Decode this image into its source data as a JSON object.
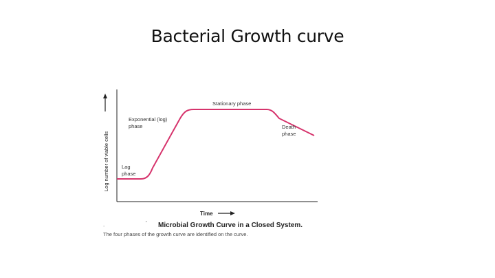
{
  "slide": {
    "title": "Bacterial Growth curve"
  },
  "diagram": {
    "y_axis_label": "Log number of viable cells",
    "x_axis_label": "Time",
    "phases": [
      {
        "id": "lag",
        "lines": [
          "Lag",
          "phase"
        ]
      },
      {
        "id": "exponential",
        "lines": [
          "Exponential (log)",
          "phase"
        ]
      },
      {
        "id": "stationary",
        "lines": [
          "Stationary phase"
        ]
      },
      {
        "id": "death",
        "lines": [
          "Death",
          "phase"
        ]
      }
    ],
    "curve_color": "#d6336c",
    "axis_color": "#222222"
  },
  "caption": {
    "marker": "'",
    "leading_dots": ". ",
    "title": "Microbial Growth Curve in a Closed System.",
    "text": "The four phases of the growth curve are identified on the curve."
  }
}
